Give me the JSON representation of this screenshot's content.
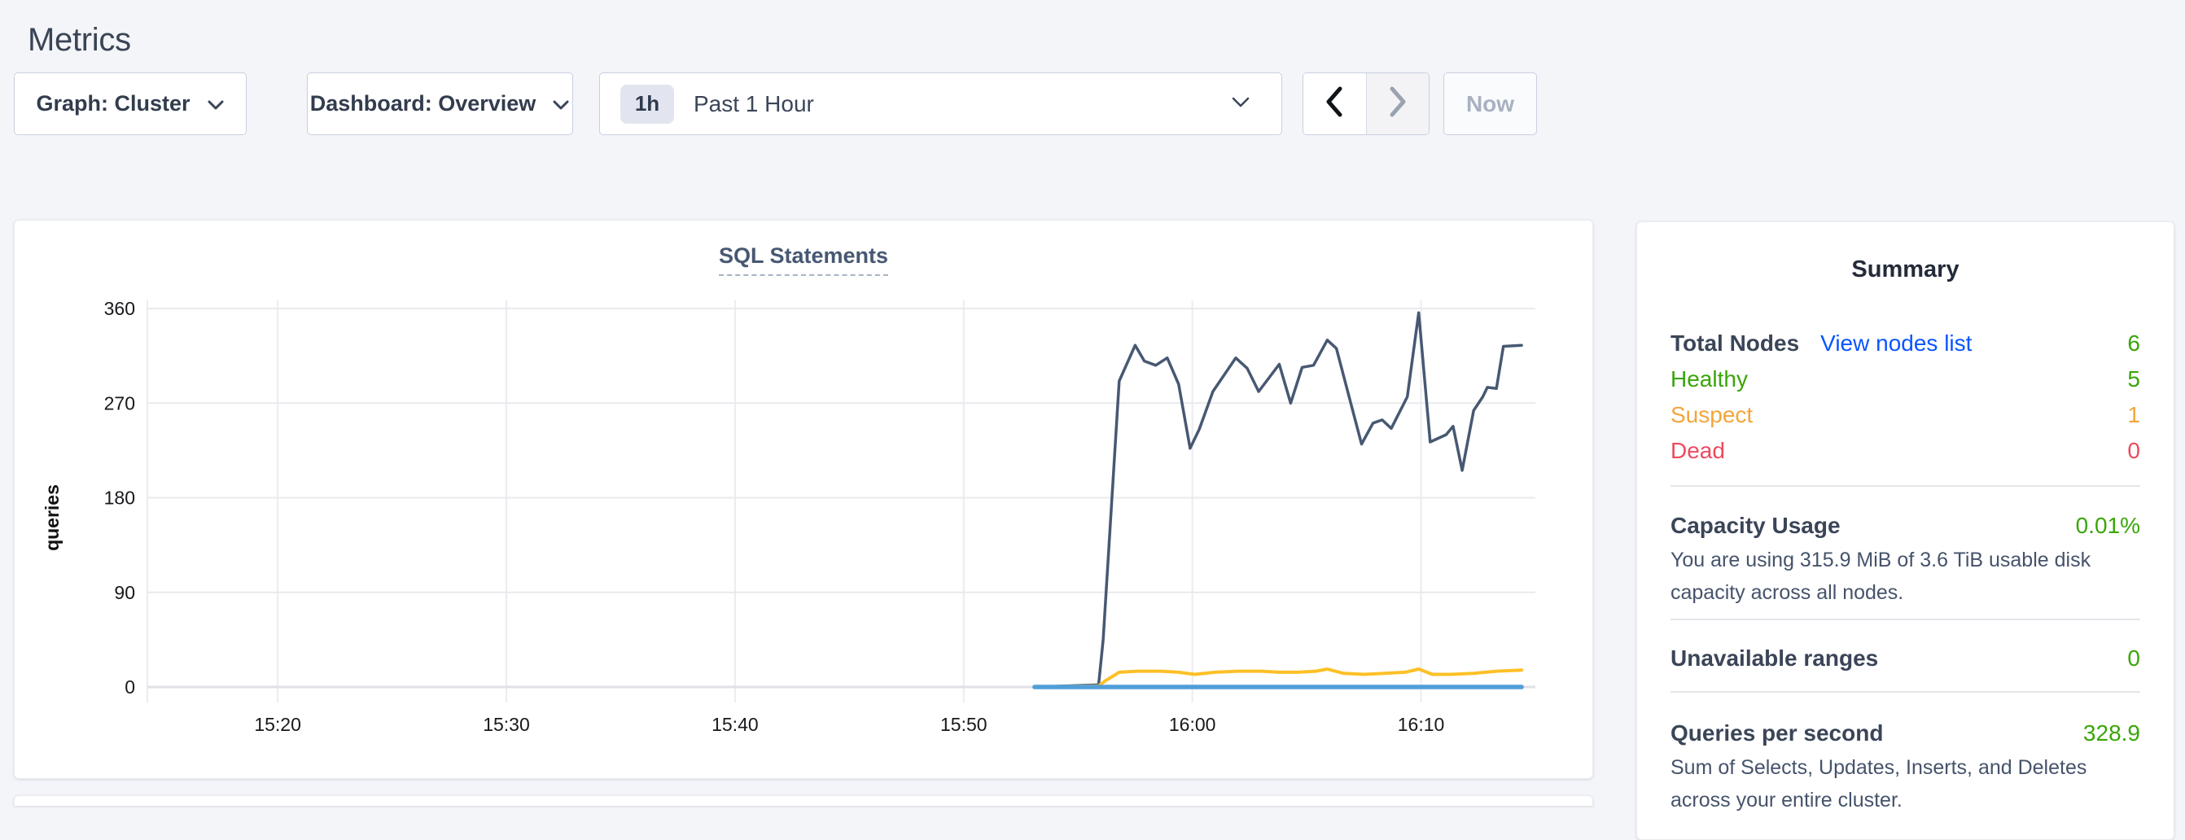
{
  "page": {
    "title": "Metrics"
  },
  "toolbar": {
    "graph_dropdown": "Graph: Cluster",
    "dashboard_dropdown": "Dashboard: Overview",
    "time_badge": "1h",
    "time_label": "Past 1 Hour",
    "now_button": "Now"
  },
  "chart_data": {
    "type": "line",
    "title": "SQL Statements",
    "ylabel": "queries",
    "x_unit": "minutes after 15:00",
    "x_range": [
      14.3,
      75.0
    ],
    "y_range": [
      0,
      360
    ],
    "y_ticks": [
      0,
      90,
      180,
      270,
      360
    ],
    "x_ticks": [
      {
        "t": 20,
        "label": "15:20"
      },
      {
        "t": 30,
        "label": "15:30"
      },
      {
        "t": 40,
        "label": "15:40"
      },
      {
        "t": 50,
        "label": "15:50"
      },
      {
        "t": 60,
        "label": "16:00"
      },
      {
        "t": 70,
        "label": "16:10"
      }
    ],
    "grid": true,
    "legend": "none",
    "series": [
      {
        "name": "series-1",
        "color": "#475872",
        "width": 3.5,
        "points": [
          [
            53.1,
            0
          ],
          [
            55.9,
            2
          ],
          [
            56.1,
            45
          ],
          [
            56.8,
            291
          ],
          [
            57.5,
            325
          ],
          [
            57.9,
            310
          ],
          [
            58.4,
            306
          ],
          [
            58.9,
            313
          ],
          [
            59.4,
            288
          ],
          [
            59.9,
            227
          ],
          [
            60.3,
            245
          ],
          [
            60.9,
            281
          ],
          [
            61.9,
            313
          ],
          [
            62.4,
            303
          ],
          [
            62.9,
            281
          ],
          [
            63.8,
            307
          ],
          [
            64.3,
            270
          ],
          [
            64.8,
            304
          ],
          [
            65.3,
            306
          ],
          [
            65.9,
            330
          ],
          [
            66.3,
            322
          ],
          [
            67.4,
            231
          ],
          [
            67.9,
            251
          ],
          [
            68.3,
            254
          ],
          [
            68.7,
            246
          ],
          [
            69.4,
            276
          ],
          [
            69.9,
            356
          ],
          [
            70.4,
            233
          ],
          [
            70.8,
            237
          ],
          [
            71.1,
            240
          ],
          [
            71.4,
            248
          ],
          [
            71.8,
            206
          ],
          [
            72.3,
            263
          ],
          [
            72.7,
            276
          ],
          [
            72.9,
            285
          ],
          [
            73.3,
            284
          ],
          [
            73.6,
            324
          ],
          [
            74.4,
            325
          ]
        ]
      },
      {
        "name": "series-2",
        "color": "#fdc026",
        "width": 4,
        "points": [
          [
            53.1,
            0
          ],
          [
            55.9,
            1
          ],
          [
            56.2,
            6
          ],
          [
            56.8,
            14
          ],
          [
            57.6,
            15
          ],
          [
            58.6,
            15
          ],
          [
            59.4,
            14
          ],
          [
            60.1,
            12
          ],
          [
            61,
            14
          ],
          [
            62,
            15
          ],
          [
            63,
            15
          ],
          [
            63.8,
            14
          ],
          [
            64.6,
            14
          ],
          [
            65.4,
            15
          ],
          [
            65.9,
            17
          ],
          [
            66.6,
            13
          ],
          [
            67.5,
            12
          ],
          [
            68.4,
            13
          ],
          [
            69.3,
            14
          ],
          [
            69.9,
            17
          ],
          [
            70.5,
            12
          ],
          [
            71.3,
            12
          ],
          [
            72.3,
            13
          ],
          [
            73.3,
            15
          ],
          [
            74.4,
            16
          ]
        ]
      },
      {
        "name": "series-3",
        "color": "#509ed8",
        "width": 5.5,
        "points": [
          [
            53.1,
            0
          ],
          [
            74.4,
            0
          ]
        ]
      }
    ]
  },
  "summary": {
    "title": "Summary",
    "nodes": {
      "label": "Total Nodes",
      "link": "View nodes list",
      "value": "6",
      "statuses": [
        {
          "label": "Healthy",
          "value": "5",
          "color": "#3aa608"
        },
        {
          "label": "Suspect",
          "value": "1",
          "color": "#f3a53a"
        },
        {
          "label": "Dead",
          "value": "0",
          "color": "#ee4a5e"
        }
      ]
    },
    "capacity": {
      "label": "Capacity Usage",
      "value": "0.01%",
      "description": "You are using 315.9 MiB of 3.6 TiB usable disk capacity across all nodes."
    },
    "unavailable": {
      "label": "Unavailable ranges",
      "value": "0"
    },
    "qps": {
      "label": "Queries per second",
      "value": "328.9",
      "description": "Sum of Selects, Updates, Inserts, and Deletes across your entire cluster."
    }
  },
  "colors": {
    "accent_green": "#3aa608",
    "accent_orange": "#f3a53a",
    "accent_red": "#ee4a5e",
    "link_blue": "#0a55ff",
    "heading": "#394455"
  }
}
